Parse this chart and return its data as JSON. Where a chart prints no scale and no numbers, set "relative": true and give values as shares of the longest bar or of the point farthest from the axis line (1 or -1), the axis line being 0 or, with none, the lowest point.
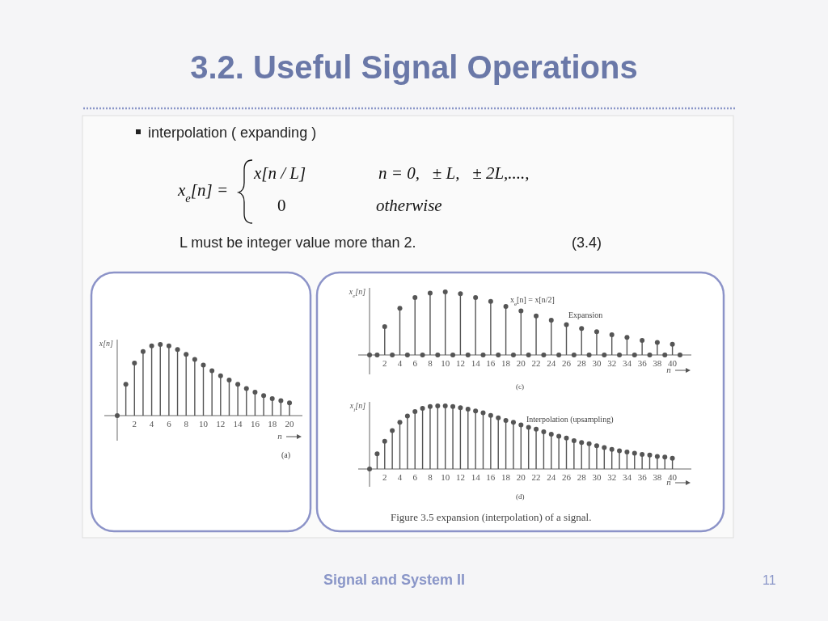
{
  "chart_data": [
    {
      "type": "other",
      "title": "3.2. Useful Signal Operations",
      "annotations": [
        "interpolation ( expanding )",
        "x$_{e}$[n] =",
        "x[n / L]",
        "n = 0,   ± L,   ± 2L,....,",
        "0",
        "otherwise",
        "L must be integer value more than 2.",
        "(3.4)",
        "Signal and System II",
        "11"
      ]
    },
    {
      "type": "lollipop",
      "relative": true,
      "tick_labels": "x",
      "xlabel": "n",
      "ylabel": "x[n]",
      "marker": "circle",
      "color": "#555555",
      "xlim": [
        -1.5,
        21.5
      ],
      "xticks": [
        2,
        4,
        6,
        8,
        10,
        12,
        14,
        16,
        18,
        20
      ],
      "annotations": [
        "(a)"
      ],
      "x": [
        0,
        1,
        2,
        3,
        4,
        5,
        6,
        7,
        8,
        9,
        10,
        11,
        12,
        13,
        14,
        15,
        16,
        17,
        18,
        19,
        20
      ],
      "values": [
        0,
        0.44,
        0.74,
        0.9,
        0.98,
        1,
        0.98,
        0.93,
        0.86,
        0.79,
        0.71,
        0.63,
        0.56,
        0.5,
        0.44,
        0.38,
        0.33,
        0.28,
        0.24,
        0.21,
        0.18
      ]
    },
    {
      "type": "lollipop",
      "relative": true,
      "tick_labels": "x",
      "xlabel": "n",
      "ylabel": "x$_{e}$[n]",
      "marker": "circle",
      "color": "#555555",
      "xlim": [
        -1.5,
        42.5
      ],
      "xticks": [
        2,
        4,
        6,
        8,
        10,
        12,
        14,
        16,
        18,
        20,
        22,
        24,
        26,
        28,
        30,
        32,
        34,
        36,
        38,
        40
      ],
      "annotations": [
        "x$_{e}$[n] = x[n/2]",
        "Expansion",
        "(c)"
      ],
      "x": [
        0,
        1,
        2,
        3,
        4,
        5,
        6,
        7,
        8,
        9,
        10,
        11,
        12,
        13,
        14,
        15,
        16,
        17,
        18,
        19,
        20,
        21,
        22,
        23,
        24,
        25,
        26,
        27,
        28,
        29,
        30,
        31,
        32,
        33,
        34,
        35,
        36,
        37,
        38,
        39,
        40,
        41
      ],
      "values": [
        0,
        0,
        0.45,
        0,
        0.74,
        0,
        0.91,
        0,
        0.98,
        0,
        1,
        0,
        0.97,
        0,
        0.91,
        0,
        0.85,
        0,
        0.77,
        0,
        0.7,
        0,
        0.62,
        0,
        0.55,
        0,
        0.48,
        0,
        0.42,
        0,
        0.37,
        0,
        0.32,
        0,
        0.28,
        0,
        0.23,
        0,
        0.2,
        0,
        0.17,
        0
      ]
    },
    {
      "type": "lollipop",
      "relative": true,
      "tick_labels": "x",
      "xlabel": "n",
      "ylabel": "x$_{i}$[n]",
      "marker": "circle",
      "color": "#555555",
      "xlim": [
        -1.5,
        42.5
      ],
      "xticks": [
        2,
        4,
        6,
        8,
        10,
        12,
        14,
        16,
        18,
        20,
        22,
        24,
        26,
        28,
        30,
        32,
        34,
        36,
        38,
        40
      ],
      "annotations": [
        "Interpolation (upsampling)",
        "(d)",
        "Figure 3.5  expansion (interpolation) of a signal."
      ],
      "x": [
        0,
        1,
        2,
        3,
        4,
        5,
        6,
        7,
        8,
        9,
        10,
        11,
        12,
        13,
        14,
        15,
        16,
        17,
        18,
        19,
        20,
        21,
        22,
        23,
        24,
        25,
        26,
        27,
        28,
        29,
        30,
        31,
        32,
        33,
        34,
        35,
        36,
        37,
        38,
        39,
        40
      ],
      "values": [
        0,
        0.24,
        0.44,
        0.61,
        0.74,
        0.84,
        0.91,
        0.96,
        0.99,
        1,
        1,
        0.99,
        0.97,
        0.95,
        0.92,
        0.89,
        0.85,
        0.81,
        0.77,
        0.74,
        0.7,
        0.66,
        0.63,
        0.59,
        0.55,
        0.52,
        0.49,
        0.45,
        0.42,
        0.4,
        0.37,
        0.34,
        0.31,
        0.29,
        0.27,
        0.25,
        0.23,
        0.22,
        0.2,
        0.19,
        0.17
      ]
    }
  ]
}
